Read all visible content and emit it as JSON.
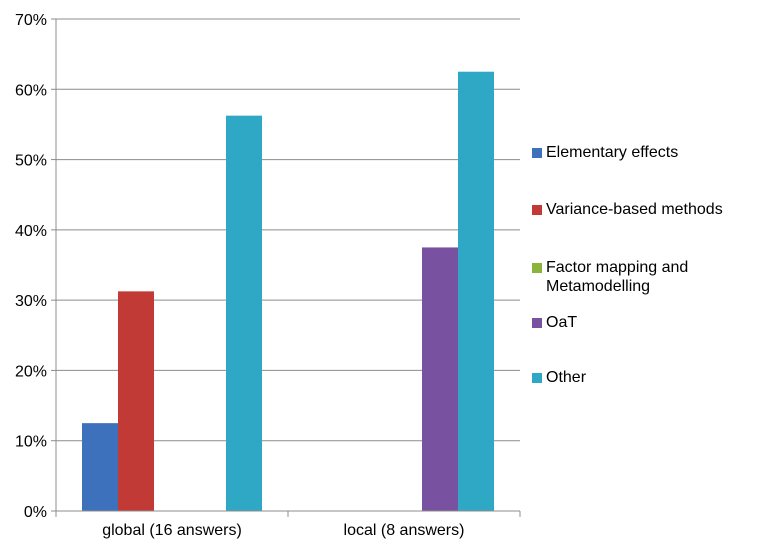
{
  "chart_data": {
    "type": "bar",
    "categories": [
      "global (16 answers)",
      "local (8 answers)"
    ],
    "series": [
      {
        "name": "Elementary effects",
        "values": [
          12.5,
          0
        ],
        "color": "#3e71bc"
      },
      {
        "name": "Variance-based methods",
        "values": [
          31.25,
          0
        ],
        "color": "#c23a36"
      },
      {
        "name": "Factor mapping and Metamodelling",
        "values": [
          0,
          0
        ],
        "color": "#8cb43c"
      },
      {
        "name": "OaT",
        "values": [
          0,
          37.5
        ],
        "color": "#7852a0"
      },
      {
        "name": "Other",
        "values": [
          56.25,
          62.5
        ],
        "color": "#2fa8c6"
      }
    ],
    "title": "",
    "xlabel": "",
    "ylabel": "",
    "ylim": [
      0,
      70
    ],
    "yticks": [
      "0%",
      "10%",
      "20%",
      "30%",
      "40%",
      "50%",
      "60%",
      "70%"
    ],
    "grid": true,
    "legend_position": "right"
  }
}
